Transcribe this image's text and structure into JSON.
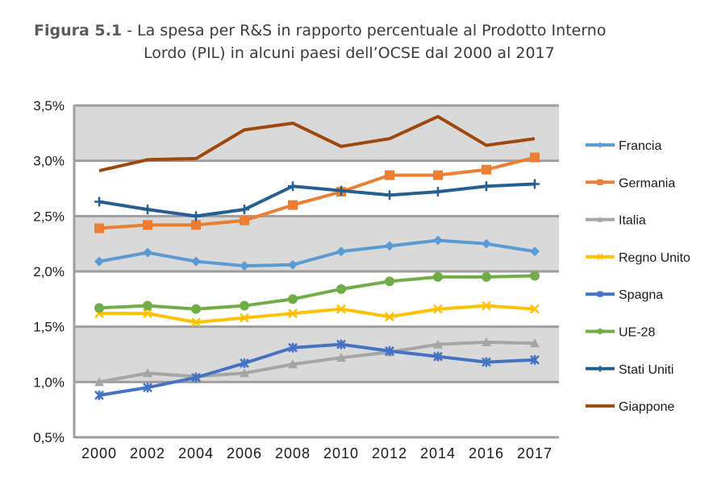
{
  "title": {
    "figure_label": "Figura 5.1",
    "line1": " - La spesa per R&S in rapporto percentuale al Prodotto Interno",
    "line2": "Lordo (PIL) in alcuni paesi dell’OCSE dal 2000 al 2017"
  },
  "chart_data": {
    "type": "line",
    "title": "Figura 5.1 - La spesa per R&S in rapporto percentuale al Prodotto Interno Lordo (PIL) in alcuni paesi dell’OCSE dal 2000 al 2017",
    "xlabel": "",
    "ylabel": "",
    "categories": [
      "2000",
      "2002",
      "2004",
      "2006",
      "2008",
      "2010",
      "2012",
      "2014",
      "2016",
      "2017"
    ],
    "ylim": [
      0.5,
      3.5
    ],
    "yticks": [
      0.5,
      1.0,
      1.5,
      2.0,
      2.5,
      3.0,
      3.5
    ],
    "ytick_labels": [
      "0,5%",
      "1,0%",
      "1,5%",
      "2,0%",
      "2,5%",
      "3,0%",
      "3,5%"
    ],
    "grid": true,
    "alternating_bands": true,
    "legend_position": "right",
    "series": [
      {
        "name": "Francia",
        "color": "#5b9bd5",
        "marker": "diamond",
        "values": [
          2.09,
          2.17,
          2.09,
          2.05,
          2.06,
          2.18,
          2.23,
          2.28,
          2.25,
          2.18
        ]
      },
      {
        "name": "Germania",
        "color": "#ed7d31",
        "marker": "square",
        "values": [
          2.39,
          2.42,
          2.42,
          2.46,
          2.6,
          2.72,
          2.87,
          2.87,
          2.92,
          3.03
        ]
      },
      {
        "name": "Italia",
        "color": "#a5a5a5",
        "marker": "triangle",
        "values": [
          1.0,
          1.08,
          1.05,
          1.08,
          1.16,
          1.22,
          1.27,
          1.34,
          1.36,
          1.35
        ]
      },
      {
        "name": "Regno Unito",
        "color": "#ffc000",
        "marker": "x",
        "values": [
          1.62,
          1.62,
          1.54,
          1.58,
          1.62,
          1.66,
          1.59,
          1.66,
          1.69,
          1.66
        ]
      },
      {
        "name": "Spagna",
        "color": "#4472c4",
        "marker": "star",
        "values": [
          0.88,
          0.95,
          1.04,
          1.17,
          1.31,
          1.34,
          1.28,
          1.23,
          1.18,
          1.2
        ]
      },
      {
        "name": "UE-28",
        "color": "#70ad47",
        "marker": "circle",
        "values": [
          1.67,
          1.69,
          1.66,
          1.69,
          1.75,
          1.84,
          1.91,
          1.95,
          1.95,
          1.96
        ]
      },
      {
        "name": "Stati Uniti",
        "color": "#255e91",
        "marker": "plus",
        "values": [
          2.63,
          2.56,
          2.5,
          2.56,
          2.77,
          2.73,
          2.69,
          2.72,
          2.77,
          2.79
        ]
      },
      {
        "name": "Giappone",
        "color": "#9e480e",
        "marker": "none",
        "values": [
          2.91,
          3.01,
          3.02,
          3.28,
          3.34,
          3.13,
          3.2,
          3.4,
          3.14,
          3.2
        ]
      }
    ]
  }
}
